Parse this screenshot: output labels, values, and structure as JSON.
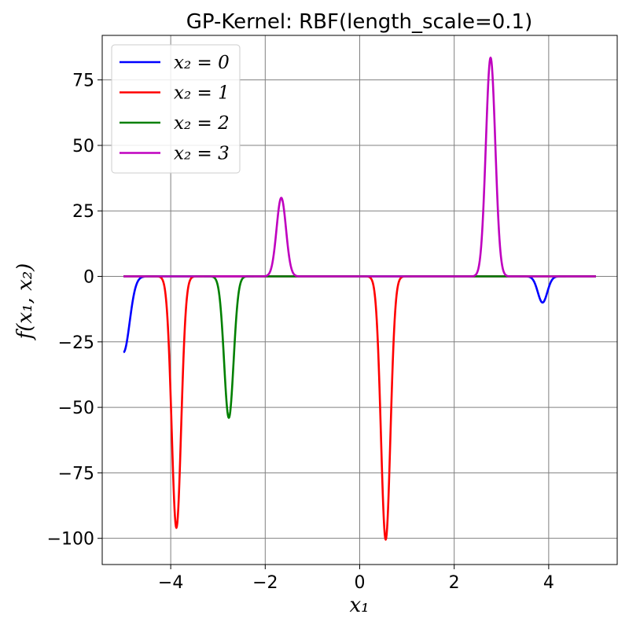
{
  "chart_data": {
    "type": "line",
    "title": "GP-Kernel: RBF(length_scale=0.1)",
    "xlabel": "x₁",
    "ylabel": "f(x₁, x₂)",
    "xlim": [
      -5.45,
      5.45
    ],
    "ylim": [
      -110,
      92
    ],
    "xticks": [
      -4,
      -2,
      0,
      2,
      4
    ],
    "yticks": [
      75,
      50,
      25,
      0,
      -25,
      -50,
      -75,
      -100
    ],
    "xtick_labels": [
      "−4",
      "−2",
      "0",
      "2",
      "4"
    ],
    "ytick_labels": [
      "75",
      "50",
      "25",
      "0",
      "−25",
      "−50",
      "−75",
      "−100"
    ],
    "x_range": [
      -5,
      5
    ],
    "grid": true,
    "legend_position": "top-left",
    "series": [
      {
        "name": "x₂ = 0",
        "color": "#0000ff",
        "peaks": [
          {
            "center": -5.0,
            "amplitude": -29,
            "width": 0.13
          },
          {
            "center": 3.87,
            "amplitude": -10,
            "width": 0.1
          }
        ]
      },
      {
        "name": "x₂ = 1",
        "color": "#ff0000",
        "peaks": [
          {
            "center": -3.88,
            "amplitude": -96,
            "width": 0.1
          },
          {
            "center": 0.55,
            "amplitude": -100.5,
            "width": 0.1
          }
        ]
      },
      {
        "name": "x₂ = 2",
        "color": "#008000",
        "peaks": [
          {
            "center": -2.77,
            "amplitude": -54,
            "width": 0.1
          }
        ]
      },
      {
        "name": "x₂ = 3",
        "color": "#bf00bf",
        "peaks": [
          {
            "center": -1.66,
            "amplitude": 30,
            "width": 0.1
          },
          {
            "center": 2.77,
            "amplitude": 83.5,
            "width": 0.1
          }
        ]
      }
    ]
  }
}
